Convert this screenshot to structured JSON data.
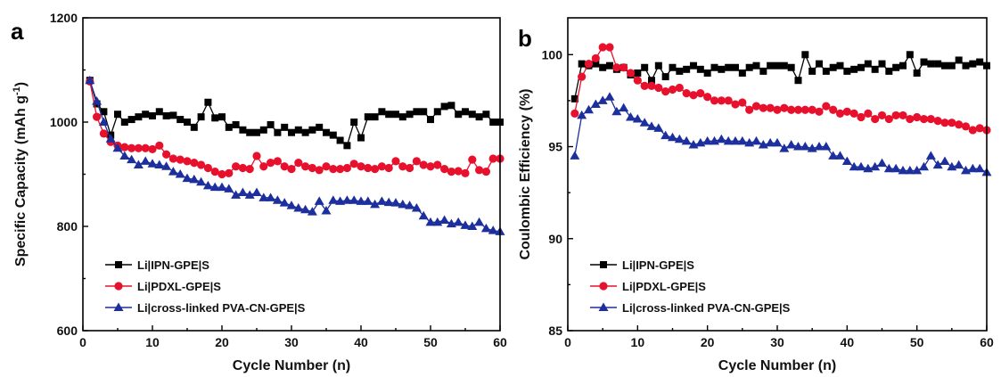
{
  "chart_data": [
    {
      "panel_label": "a",
      "type": "line",
      "xlabel": "Cycle Number (n)",
      "ylabel": "Specific Capacity (mAh g",
      "ylabel_sup": "-1",
      "ylabel_close": ")",
      "xlim": [
        0,
        60
      ],
      "ylim": [
        600,
        1200
      ],
      "xticks": [
        0,
        10,
        20,
        30,
        40,
        50,
        60
      ],
      "yticks": [
        600,
        800,
        1000,
        1200
      ],
      "legend_position": "bottom-left",
      "series": [
        {
          "name": "Li|IPN-GPE|S",
          "marker": "square",
          "color": "#000000",
          "x": [
            1,
            2,
            3,
            4,
            5,
            6,
            7,
            8,
            9,
            10,
            11,
            12,
            13,
            14,
            15,
            16,
            17,
            18,
            19,
            20,
            21,
            22,
            23,
            24,
            25,
            26,
            27,
            28,
            29,
            30,
            31,
            32,
            33,
            34,
            35,
            36,
            37,
            38,
            39,
            40,
            41,
            42,
            43,
            44,
            45,
            46,
            47,
            48,
            49,
            50,
            51,
            52,
            53,
            54,
            55,
            56,
            57,
            58,
            59,
            60
          ],
          "y": [
            1080,
            1035,
            1020,
            975,
            1015,
            1000,
            1005,
            1010,
            1015,
            1012,
            1020,
            1012,
            1013,
            1005,
            1000,
            990,
            1010,
            1038,
            1008,
            1010,
            990,
            995,
            985,
            980,
            980,
            985,
            995,
            980,
            990,
            980,
            985,
            980,
            985,
            990,
            980,
            975,
            965,
            955,
            1000,
            970,
            1010,
            1010,
            1020,
            1015,
            1015,
            1010,
            1015,
            1020,
            1020,
            1005,
            1020,
            1030,
            1032,
            1015,
            1020,
            1015,
            1010,
            1015,
            1000,
            1000
          ]
        },
        {
          "name": "Li|PDXL-GPE|S",
          "marker": "circle",
          "color": "#e8112d",
          "x": [
            1,
            2,
            3,
            4,
            5,
            6,
            7,
            8,
            9,
            10,
            11,
            12,
            13,
            14,
            15,
            16,
            17,
            18,
            19,
            20,
            21,
            22,
            23,
            24,
            25,
            26,
            27,
            28,
            29,
            30,
            31,
            32,
            33,
            34,
            35,
            36,
            37,
            38,
            39,
            40,
            41,
            42,
            43,
            44,
            45,
            46,
            47,
            48,
            49,
            50,
            51,
            52,
            53,
            54,
            55,
            56,
            57,
            58,
            59,
            60
          ],
          "y": [
            1078,
            1010,
            978,
            962,
            955,
            952,
            950,
            950,
            950,
            948,
            955,
            938,
            930,
            928,
            925,
            922,
            918,
            912,
            905,
            900,
            902,
            915,
            912,
            910,
            935,
            915,
            922,
            925,
            915,
            910,
            922,
            915,
            912,
            908,
            915,
            910,
            910,
            912,
            920,
            915,
            912,
            910,
            915,
            912,
            925,
            915,
            912,
            925,
            918,
            915,
            918,
            910,
            905,
            906,
            902,
            928,
            908,
            905,
            930,
            930
          ]
        },
        {
          "name": "Li|cross-linked PVA-CN-GPE|S",
          "marker": "triangle",
          "color": "#1c2f9c",
          "x": [
            1,
            2,
            3,
            4,
            5,
            6,
            7,
            8,
            9,
            10,
            11,
            12,
            13,
            14,
            15,
            16,
            17,
            18,
            19,
            20,
            21,
            22,
            23,
            24,
            25,
            26,
            27,
            28,
            29,
            30,
            31,
            32,
            33,
            34,
            35,
            36,
            37,
            38,
            39,
            40,
            41,
            42,
            43,
            44,
            45,
            46,
            47,
            48,
            49,
            50,
            51,
            52,
            53,
            54,
            55,
            56,
            57,
            58,
            59,
            60
          ],
          "y": [
            1080,
            1040,
            1000,
            968,
            950,
            935,
            928,
            918,
            925,
            920,
            918,
            915,
            905,
            900,
            892,
            890,
            885,
            878,
            875,
            875,
            872,
            860,
            865,
            860,
            865,
            855,
            855,
            850,
            845,
            840,
            835,
            832,
            828,
            848,
            830,
            850,
            848,
            850,
            850,
            848,
            848,
            842,
            848,
            846,
            845,
            842,
            840,
            835,
            820,
            808,
            808,
            812,
            805,
            808,
            802,
            800,
            808,
            796,
            792,
            790
          ]
        }
      ]
    },
    {
      "panel_label": "b",
      "type": "line",
      "xlabel": "Cycle Number (n)",
      "ylabel": "Coulombic Efficiency (%)",
      "xlim": [
        0,
        60
      ],
      "ylim": [
        85,
        102
      ],
      "xticks": [
        0,
        10,
        20,
        30,
        40,
        50,
        60
      ],
      "yticks": [
        85,
        90,
        95,
        100
      ],
      "legend_position": "bottom-left",
      "series": [
        {
          "name": "Li|IPN-GPE|S",
          "marker": "square",
          "color": "#000000",
          "x": [
            1,
            2,
            3,
            4,
            5,
            6,
            7,
            8,
            9,
            10,
            11,
            12,
            13,
            14,
            15,
            16,
            17,
            18,
            19,
            20,
            21,
            22,
            23,
            24,
            25,
            26,
            27,
            28,
            29,
            30,
            31,
            32,
            33,
            34,
            35,
            36,
            37,
            38,
            39,
            40,
            41,
            42,
            43,
            44,
            45,
            46,
            47,
            48,
            49,
            50,
            51,
            52,
            53,
            54,
            55,
            56,
            57,
            58,
            59,
            60
          ],
          "y": [
            97.6,
            99.5,
            99.4,
            99.5,
            99.3,
            99.4,
            99.2,
            99.3,
            98.9,
            99.0,
            99.3,
            98.6,
            99.4,
            98.8,
            99.3,
            99.1,
            99.2,
            99.4,
            99.2,
            99.0,
            99.3,
            99.2,
            99.3,
            99.3,
            99.0,
            99.3,
            99.4,
            99.1,
            99.4,
            99.4,
            99.4,
            99.3,
            98.6,
            100.0,
            99.1,
            99.5,
            99.1,
            99.3,
            99.4,
            99.1,
            99.2,
            99.3,
            99.5,
            99.2,
            99.5,
            99.1,
            99.3,
            99.4,
            100.0,
            99.0,
            99.6,
            99.5,
            99.5,
            99.4,
            99.4,
            99.7,
            99.4,
            99.5,
            99.6,
            99.4
          ]
        },
        {
          "name": "Li|PDXL-GPE|S",
          "marker": "circle",
          "color": "#e8112d",
          "x": [
            1,
            2,
            3,
            4,
            5,
            6,
            7,
            8,
            9,
            10,
            11,
            12,
            13,
            14,
            15,
            16,
            17,
            18,
            19,
            20,
            21,
            22,
            23,
            24,
            25,
            26,
            27,
            28,
            29,
            30,
            31,
            32,
            33,
            34,
            35,
            36,
            37,
            38,
            39,
            40,
            41,
            42,
            43,
            44,
            45,
            46,
            47,
            48,
            49,
            50,
            51,
            52,
            53,
            54,
            55,
            56,
            57,
            58,
            59,
            60
          ],
          "y": [
            96.8,
            98.8,
            99.5,
            99.8,
            100.4,
            100.4,
            99.3,
            99.3,
            99.0,
            98.6,
            98.3,
            98.3,
            98.2,
            98.0,
            98.1,
            98.2,
            97.9,
            97.8,
            97.9,
            97.7,
            97.5,
            97.5,
            97.5,
            97.3,
            97.4,
            97.0,
            97.2,
            97.1,
            97.1,
            97.0,
            97.1,
            97.0,
            97.0,
            97.0,
            97.0,
            96.9,
            97.2,
            97.0,
            96.8,
            96.9,
            96.8,
            96.6,
            96.8,
            96.5,
            96.7,
            96.5,
            96.7,
            96.7,
            96.5,
            96.6,
            96.5,
            96.5,
            96.4,
            96.3,
            96.3,
            96.2,
            96.1,
            95.9,
            96.0,
            95.9
          ]
        },
        {
          "name": "Li|cross-linked PVA-CN-GPE|S",
          "marker": "triangle",
          "color": "#1c2f9c",
          "x": [
            1,
            2,
            3,
            4,
            5,
            6,
            7,
            8,
            9,
            10,
            11,
            12,
            13,
            14,
            15,
            16,
            17,
            18,
            19,
            20,
            21,
            22,
            23,
            24,
            25,
            26,
            27,
            28,
            29,
            30,
            31,
            32,
            33,
            34,
            35,
            36,
            37,
            38,
            39,
            40,
            41,
            42,
            43,
            44,
            45,
            46,
            47,
            48,
            49,
            50,
            51,
            52,
            53,
            54,
            55,
            56,
            57,
            58,
            59,
            60
          ],
          "y": [
            94.5,
            96.7,
            97.0,
            97.3,
            97.5,
            97.7,
            96.9,
            97.1,
            96.6,
            96.5,
            96.3,
            96.1,
            96.0,
            95.6,
            95.5,
            95.4,
            95.3,
            95.1,
            95.2,
            95.3,
            95.3,
            95.4,
            95.3,
            95.3,
            95.3,
            95.2,
            95.3,
            95.1,
            95.2,
            95.2,
            94.9,
            95.1,
            95.0,
            95.0,
            94.9,
            95.0,
            95.0,
            94.5,
            94.5,
            94.2,
            93.9,
            93.9,
            93.8,
            93.9,
            94.1,
            93.8,
            93.8,
            93.7,
            93.7,
            93.7,
            93.9,
            94.5,
            94.0,
            94.2,
            93.9,
            94.0,
            93.7,
            93.8,
            93.8,
            93.6
          ]
        }
      ]
    }
  ]
}
